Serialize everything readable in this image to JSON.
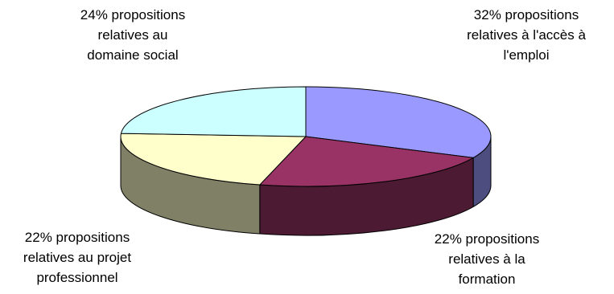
{
  "chart_data": {
    "type": "pie",
    "title": "",
    "style": "3d-pie",
    "slices": [
      {
        "percent": 32,
        "label_lines": [
          "32% propositions",
          "relatives à l'accès à",
          "l'emploi"
        ],
        "top_color": "#9999ff",
        "side_color": "#4d4d80"
      },
      {
        "percent": 22,
        "label_lines": [
          "22% propositions",
          "relatives à la",
          "formation"
        ],
        "top_color": "#993366",
        "side_color": "#4d1a33"
      },
      {
        "percent": 22,
        "label_lines": [
          "22% propositions",
          "relatives au projet",
          "professionnel"
        ],
        "top_color": "#ffffcc",
        "side_color": "#808066"
      },
      {
        "percent": 24,
        "label_lines": [
          "24% propositions",
          "relatives au",
          "domaine social"
        ],
        "top_color": "#ccffff",
        "side_color": "#668080"
      }
    ]
  }
}
